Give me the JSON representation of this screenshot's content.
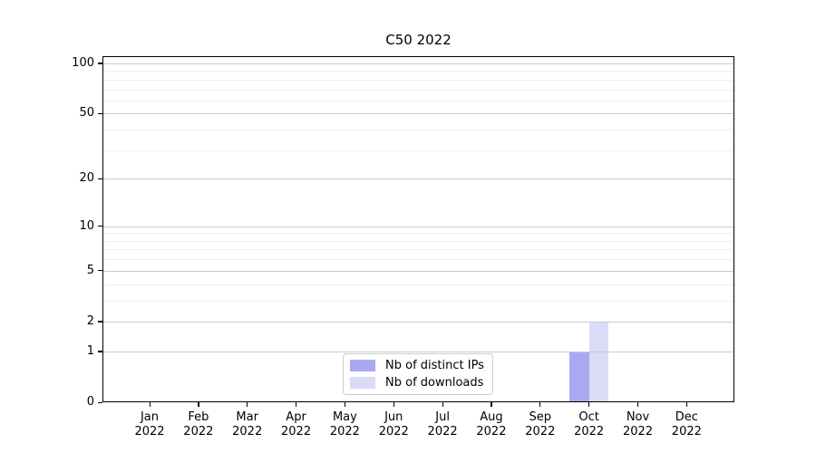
{
  "chart_data": {
    "type": "bar",
    "title": "C50 2022",
    "categories": [
      "Jan 2022",
      "Feb 2022",
      "Mar 2022",
      "Apr 2022",
      "May 2022",
      "Jun 2022",
      "Jul 2022",
      "Aug 2022",
      "Sep 2022",
      "Oct 2022",
      "Nov 2022",
      "Dec 2022"
    ],
    "series": [
      {
        "name": "Nb of distinct IPs",
        "color": "#a9a9f2",
        "values": [
          0,
          0,
          0,
          0,
          0,
          0,
          0,
          0,
          0,
          1,
          0,
          0
        ]
      },
      {
        "name": "Nb of downloads",
        "color": "#dbdbf8",
        "values": [
          0,
          0,
          0,
          0,
          0,
          0,
          0,
          0,
          0,
          2,
          0,
          0
        ]
      }
    ],
    "xlabel": "",
    "ylabel": "",
    "y_scale": "log-like (log10 of value+1)",
    "y_tick_values": [
      0,
      1,
      2,
      5,
      10,
      20,
      50,
      100
    ],
    "y_tick_labels": [
      "0",
      "1",
      "2",
      "5",
      "10",
      "20",
      "50",
      "100"
    ],
    "y_minor_gridline_values": [
      3,
      4,
      6,
      7,
      8,
      9,
      30,
      40,
      60,
      70,
      80,
      90
    ],
    "ylim": [
      0,
      110
    ],
    "grid": true,
    "legend_position": "lower center inside axes"
  }
}
